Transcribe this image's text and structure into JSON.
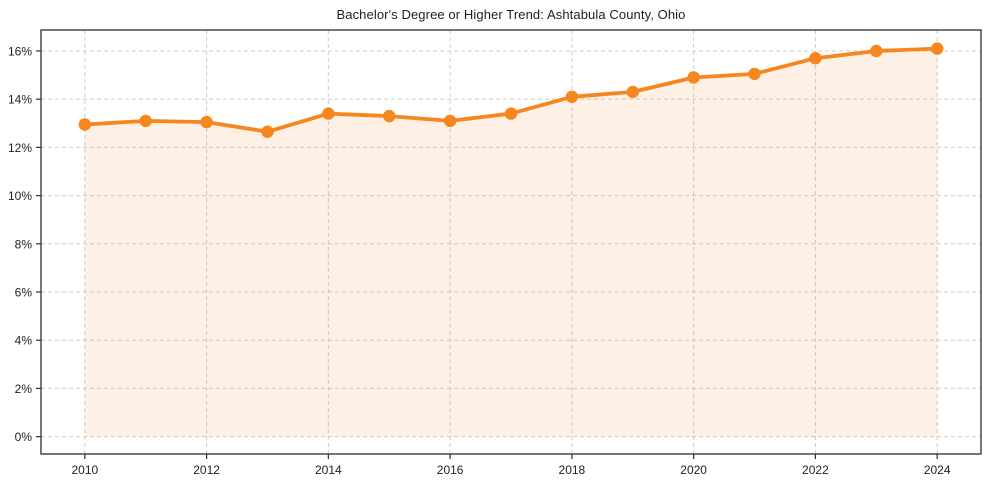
{
  "window": {
    "background": "#ffffff"
  },
  "chart_data": {
    "type": "area",
    "title": "Bachelor's Degree or Higher Trend: Ashtabula County, Ohio",
    "xlabel": "",
    "ylabel": "",
    "x": [
      2010,
      2011,
      2012,
      2013,
      2014,
      2015,
      2016,
      2017,
      2018,
      2019,
      2020,
      2021,
      2022,
      2023,
      2024
    ],
    "series": [
      {
        "name": "Bachelor's Degree or Higher (%)",
        "values": [
          12.95,
          13.1,
          13.05,
          12.65,
          13.4,
          13.3,
          13.1,
          13.4,
          14.1,
          14.3,
          14.9,
          15.05,
          15.7,
          16.0,
          16.1
        ]
      }
    ],
    "x_ticks": {
      "values": [
        2010,
        2012,
        2014,
        2016,
        2018,
        2020,
        2022,
        2024
      ],
      "labels": [
        "2010",
        "2012",
        "2014",
        "2016",
        "2018",
        "2020",
        "2022",
        "2024"
      ]
    },
    "y_ticks": {
      "values": [
        0,
        2,
        4,
        6,
        8,
        10,
        12,
        14,
        16
      ],
      "labels": [
        "0%",
        "2%",
        "4%",
        "6%",
        "8%",
        "10%",
        "12%",
        "14%",
        "16%"
      ]
    },
    "xlim": [
      2009.28,
      2024.72
    ],
    "ylim": [
      -0.72,
      16.87
    ],
    "area_baseline": 0,
    "grid": "dashed, horizontal at y ticks and vertical at x ticks",
    "legend": "none",
    "marker": "circle",
    "colors": {
      "line": "#f6871f",
      "marker": "#f6871f",
      "area_fill": "rgba(246, 135, 31, 0.12)",
      "grid": "#cccccc",
      "spine": "#2e2e2e",
      "tick": "#2e2e2e",
      "text": "#1f1f1f",
      "background": "#ffffff"
    }
  }
}
